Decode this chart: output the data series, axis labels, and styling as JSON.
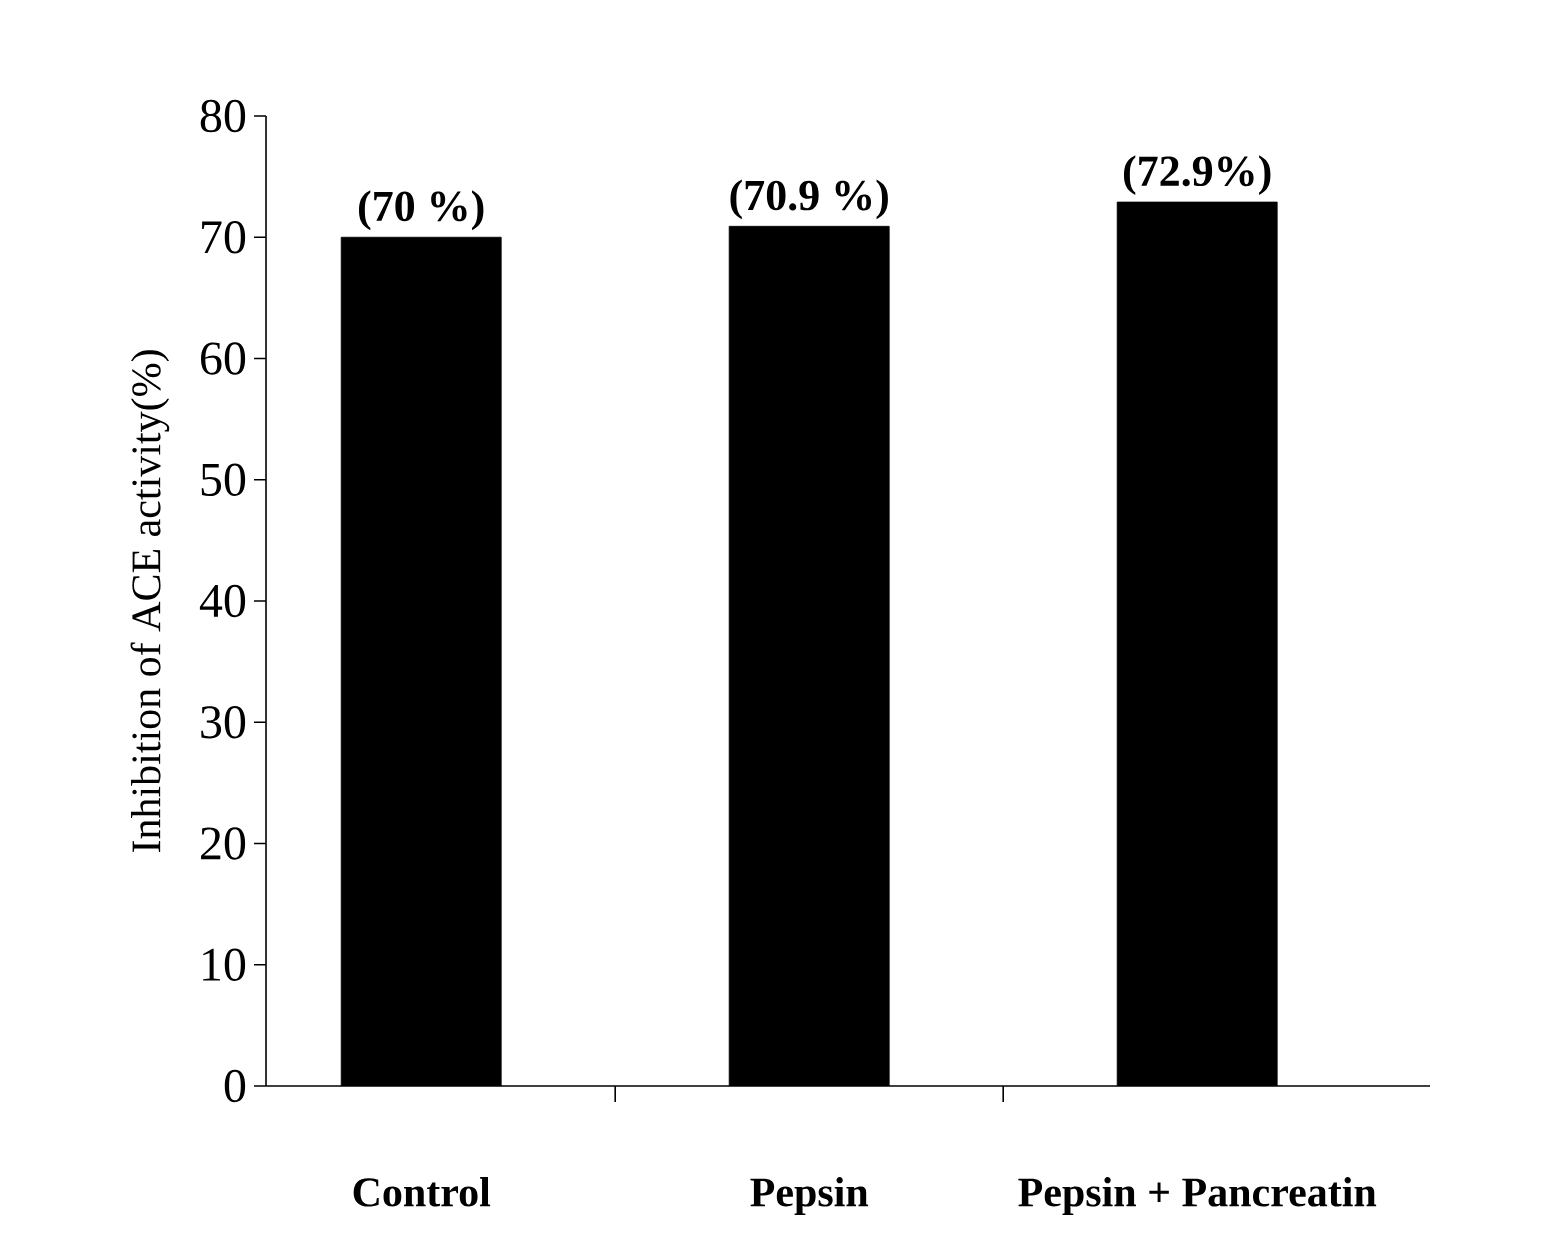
{
  "chart_data": {
    "type": "bar",
    "ylabel": "Inhibition of ACE activity(%)",
    "categories": [
      "Control",
      "Pepsin",
      "Pepsin + Pancreatin"
    ],
    "values": [
      70,
      70.9,
      72.9
    ],
    "value_labels": [
      "(70 %)",
      "(70.9 %)",
      "(72.9%)"
    ],
    "color": "#000000",
    "ylim": [
      0,
      80
    ],
    "yticks": [
      0,
      10,
      20,
      30,
      40,
      50,
      60,
      70,
      80
    ]
  }
}
